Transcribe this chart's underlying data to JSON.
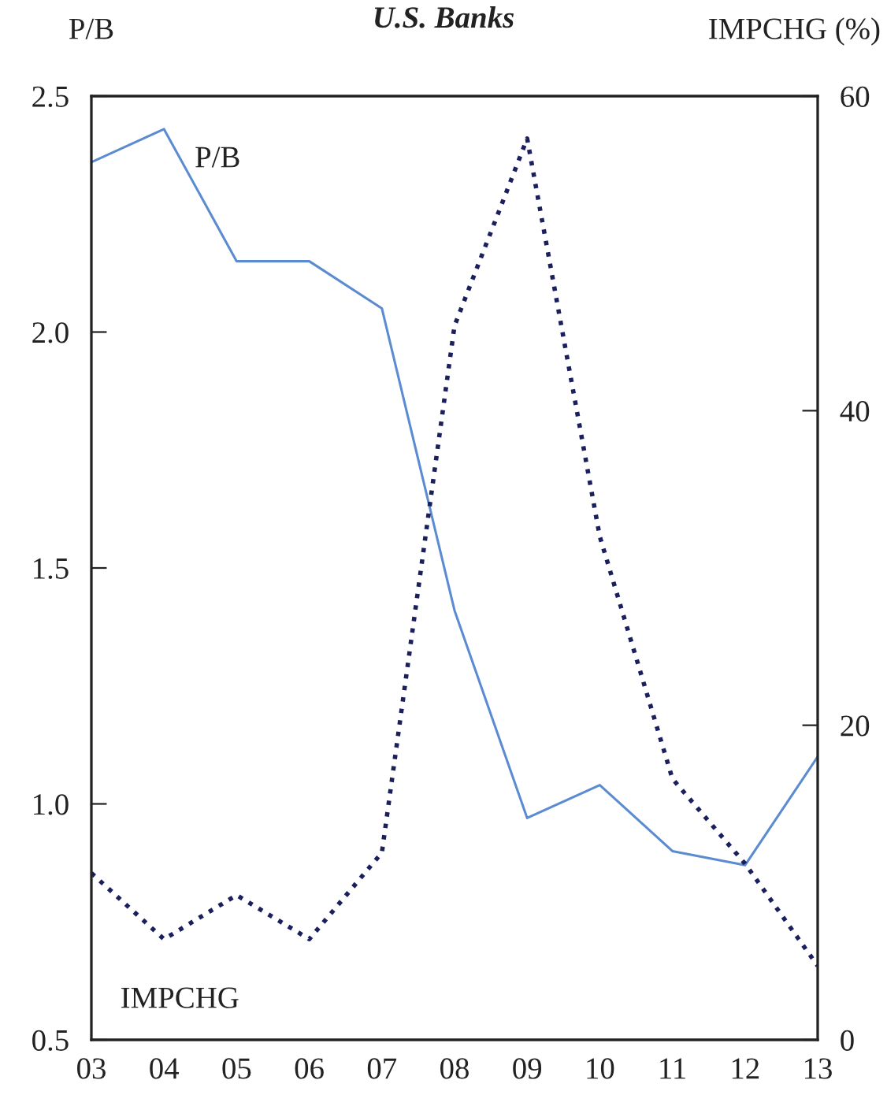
{
  "chart_data": {
    "type": "line",
    "title": "U.S. Banks",
    "ylabel": "P/B",
    "y2label": "IMPCHG (%)",
    "categories": [
      "03",
      "04",
      "05",
      "06",
      "07",
      "08",
      "09",
      "10",
      "11",
      "12",
      "13"
    ],
    "series": [
      {
        "name": "P/B",
        "color": "#5b8bd0",
        "line_style": "solid",
        "values": [
          2.36,
          2.43,
          2.15,
          2.15,
          2.05,
          1.41,
          0.97,
          1.04,
          0.9,
          0.87,
          1.1
        ]
      },
      {
        "name": "IMPCHG",
        "color": "#1a1f5e",
        "line_style": "dotted",
        "axis": "y2",
        "values": [
          10.6,
          6.4,
          9.2,
          6.4,
          11.9,
          45.4,
          57.3,
          32.0,
          16.6,
          11.2,
          4.7
        ]
      }
    ],
    "ylim": [
      0.5,
      2.5
    ],
    "yticks": [
      {
        "value": 0.5,
        "label": "0.5"
      },
      {
        "value": 1.0,
        "label": "1.0"
      },
      {
        "value": 1.5,
        "label": "1.5"
      },
      {
        "value": 2.0,
        "label": "2.0"
      },
      {
        "value": 2.5,
        "label": "2.5"
      }
    ],
    "y2lim": [
      0,
      60
    ],
    "y2ticks": [
      0,
      20,
      40,
      60
    ],
    "grid": false,
    "legend": false,
    "marker": "none"
  }
}
